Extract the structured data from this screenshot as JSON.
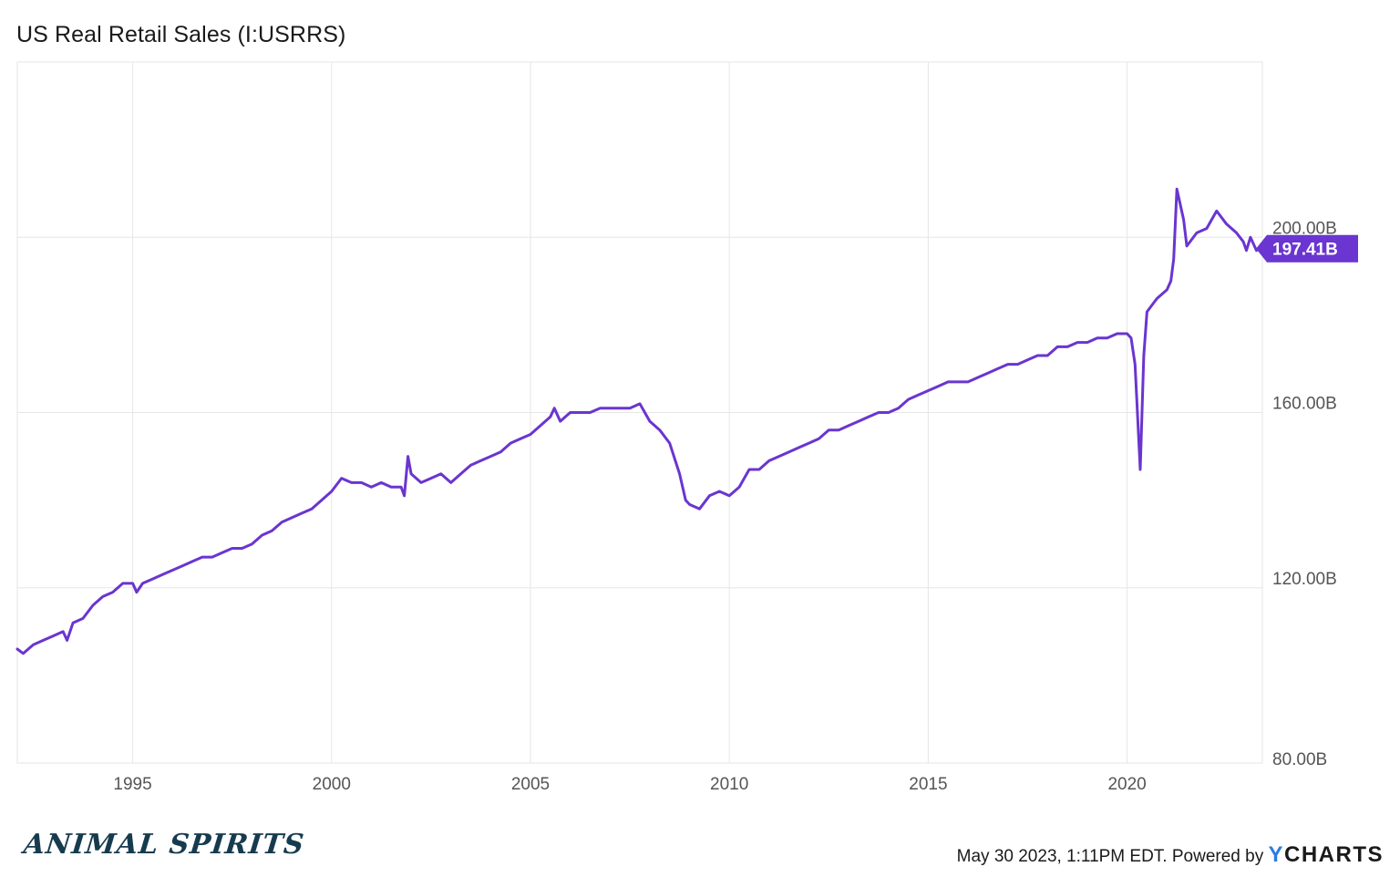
{
  "title": "US Real Retail Sales (I:USRRS)",
  "footer": {
    "timestamp": "May 30 2023, 1:11PM EDT. Powered by",
    "brand_y": "Y",
    "brand_rest": "CHARTS"
  },
  "logo": "ANIMAL SPIRITS",
  "colors": {
    "line": "#6a35d0",
    "grid": "#e6e6e6",
    "axis_text": "#555555"
  },
  "chart_data": {
    "type": "line",
    "title": "US Real Retail Sales (I:USRRS)",
    "xlabel": "",
    "ylabel": "",
    "grid": true,
    "xlim": [
      1992.1,
      2023.4
    ],
    "ylim": [
      80,
      240
    ],
    "x_ticks": [
      1995,
      2000,
      2005,
      2010,
      2015,
      2020
    ],
    "x_tick_labels": [
      "1995",
      "2000",
      "2005",
      "2010",
      "2015",
      "2020"
    ],
    "y_ticks": [
      80,
      120,
      160,
      200
    ],
    "y_tick_labels": [
      "80.00B",
      "120.00B",
      "160.00B",
      "200.00B"
    ],
    "last_value_label": "197.41B",
    "series": [
      {
        "name": "",
        "x": [
          1992.1,
          1992.25,
          1992.5,
          1992.75,
          1993.0,
          1993.25,
          1993.35,
          1993.5,
          1993.75,
          1994.0,
          1994.25,
          1994.5,
          1994.75,
          1995.0,
          1995.1,
          1995.25,
          1995.5,
          1995.75,
          1996.0,
          1996.25,
          1996.5,
          1996.75,
          1997.0,
          1997.25,
          1997.5,
          1997.75,
          1998.0,
          1998.25,
          1998.5,
          1998.75,
          1999.0,
          1999.25,
          1999.5,
          1999.75,
          2000.0,
          2000.25,
          2000.5,
          2000.75,
          2001.0,
          2001.25,
          2001.5,
          2001.75,
          2001.83,
          2001.92,
          2002.0,
          2002.25,
          2002.5,
          2002.75,
          2003.0,
          2003.25,
          2003.5,
          2003.75,
          2004.0,
          2004.25,
          2004.5,
          2004.75,
          2005.0,
          2005.25,
          2005.5,
          2005.6,
          2005.75,
          2006.0,
          2006.25,
          2006.5,
          2006.75,
          2007.0,
          2007.25,
          2007.5,
          2007.75,
          2008.0,
          2008.25,
          2008.5,
          2008.75,
          2008.9,
          2009.0,
          2009.25,
          2009.5,
          2009.75,
          2010.0,
          2010.25,
          2010.5,
          2010.75,
          2011.0,
          2011.25,
          2011.5,
          2011.75,
          2012.0,
          2012.25,
          2012.5,
          2012.75,
          2013.0,
          2013.25,
          2013.5,
          2013.75,
          2014.0,
          2014.25,
          2014.5,
          2014.75,
          2015.0,
          2015.25,
          2015.5,
          2015.75,
          2016.0,
          2016.25,
          2016.5,
          2016.75,
          2017.0,
          2017.25,
          2017.5,
          2017.75,
          2018.0,
          2018.25,
          2018.5,
          2018.75,
          2019.0,
          2019.25,
          2019.5,
          2019.75,
          2020.0,
          2020.1,
          2020.2,
          2020.33,
          2020.42,
          2020.5,
          2020.75,
          2021.0,
          2021.1,
          2021.17,
          2021.25,
          2021.42,
          2021.5,
          2021.75,
          2022.0,
          2022.25,
          2022.5,
          2022.75,
          2022.92,
          2023.0,
          2023.1,
          2023.25,
          2023.33
        ],
        "y": [
          106,
          105,
          107,
          108,
          109,
          110,
          108,
          112,
          113,
          116,
          118,
          119,
          121,
          121,
          119,
          121,
          122,
          123,
          124,
          125,
          126,
          127,
          127,
          128,
          129,
          129,
          130,
          132,
          133,
          135,
          136,
          137,
          138,
          140,
          142,
          145,
          144,
          144,
          143,
          144,
          143,
          143,
          141,
          150,
          146,
          144,
          145,
          146,
          144,
          146,
          148,
          149,
          150,
          151,
          153,
          154,
          155,
          157,
          159,
          161,
          158,
          160,
          160,
          160,
          161,
          161,
          161,
          161,
          162,
          158,
          156,
          153,
          146,
          140,
          139,
          138,
          141,
          142,
          141,
          143,
          147,
          147,
          149,
          150,
          151,
          152,
          153,
          154,
          156,
          156,
          157,
          158,
          159,
          160,
          160,
          161,
          163,
          164,
          165,
          166,
          167,
          167,
          167,
          168,
          169,
          170,
          171,
          171,
          172,
          173,
          173,
          175,
          175,
          176,
          176,
          177,
          177,
          178,
          178,
          177,
          171,
          147,
          173,
          183,
          186,
          188,
          190,
          195,
          211,
          204,
          198,
          201,
          202,
          206,
          203,
          201,
          199,
          197,
          200,
          197,
          197.41
        ]
      }
    ]
  }
}
